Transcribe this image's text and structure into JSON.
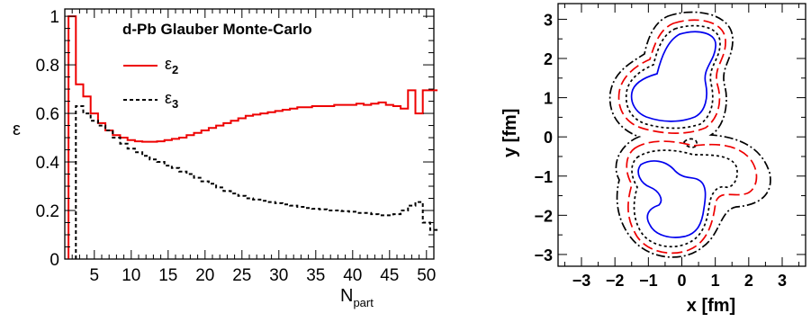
{
  "chart_data": [
    {
      "type": "line",
      "title": "d-Pb  Glauber Monte-Carlo",
      "xlabel": "N",
      "xlabel_sub": "part",
      "ylabel": "ε",
      "xlim": [
        1,
        51
      ],
      "ylim": [
        0,
        1.03
      ],
      "xticks": [
        5,
        10,
        15,
        20,
        25,
        30,
        35,
        40,
        45,
        50
      ],
      "yticks": [
        0,
        0.2,
        0.4,
        0.6,
        0.8,
        1
      ],
      "ytick_labels": [
        "0",
        "0.2",
        "0.4",
        "0.6",
        "0.8",
        "1"
      ],
      "legend_placement": "top-center",
      "grid": false,
      "series": [
        {
          "name": "ε",
          "name_sub": "2",
          "color": "#ee0000",
          "style": "solid",
          "x": [
            2,
            3,
            4,
            5,
            6,
            7,
            8,
            9,
            10,
            11,
            12,
            13,
            14,
            15,
            16,
            17,
            18,
            19,
            20,
            21,
            22,
            23,
            24,
            25,
            26,
            27,
            28,
            29,
            30,
            31,
            32,
            33,
            34,
            35,
            36,
            37,
            38,
            39,
            40,
            41,
            42,
            43,
            44,
            45,
            46,
            47,
            48,
            49,
            50,
            51
          ],
          "y": [
            1.0,
            0.72,
            0.67,
            0.6,
            0.56,
            0.53,
            0.51,
            0.5,
            0.49,
            0.485,
            0.483,
            0.483,
            0.485,
            0.49,
            0.495,
            0.5,
            0.51,
            0.52,
            0.53,
            0.54,
            0.55,
            0.56,
            0.57,
            0.58,
            0.59,
            0.595,
            0.6,
            0.605,
            0.61,
            0.615,
            0.62,
            0.625,
            0.625,
            0.63,
            0.63,
            0.63,
            0.635,
            0.635,
            0.635,
            0.64,
            0.635,
            0.64,
            0.645,
            0.635,
            0.63,
            0.62,
            0.695,
            0.6,
            0.695,
            0.695
          ]
        },
        {
          "name": "ε",
          "name_sub": "3",
          "color": "#000000",
          "style": "dashed",
          "x": [
            3,
            4,
            5,
            6,
            7,
            8,
            9,
            10,
            11,
            12,
            13,
            14,
            15,
            16,
            17,
            18,
            19,
            20,
            21,
            22,
            23,
            24,
            25,
            26,
            27,
            28,
            29,
            30,
            31,
            32,
            33,
            34,
            35,
            36,
            37,
            38,
            39,
            40,
            41,
            42,
            43,
            44,
            45,
            46,
            47,
            48,
            49,
            50,
            51
          ],
          "y": [
            0.63,
            0.6,
            0.57,
            0.55,
            0.53,
            0.5,
            0.475,
            0.455,
            0.44,
            0.425,
            0.41,
            0.4,
            0.385,
            0.375,
            0.36,
            0.35,
            0.335,
            0.32,
            0.31,
            0.295,
            0.28,
            0.27,
            0.26,
            0.25,
            0.245,
            0.24,
            0.235,
            0.23,
            0.225,
            0.22,
            0.215,
            0.21,
            0.207,
            0.205,
            0.2,
            0.2,
            0.197,
            0.195,
            0.19,
            0.19,
            0.185,
            0.18,
            0.18,
            0.185,
            0.2,
            0.22,
            0.235,
            0.15,
            0.12
          ]
        }
      ]
    },
    {
      "type": "contour",
      "xlabel": "x  [fm]",
      "ylabel": "y  [fm]",
      "xlim": [
        -3.7,
        3.7
      ],
      "ylim": [
        -3.3,
        3.4
      ],
      "xticks": [
        -3,
        -2,
        -1,
        0,
        1,
        2,
        3
      ],
      "xtick_labels": [
        "−3",
        "−2",
        "−1",
        "0",
        "1",
        "2",
        "3"
      ],
      "yticks": [
        -3,
        -2,
        -1,
        0,
        1,
        2,
        3
      ],
      "ytick_labels": [
        "−3",
        "−2",
        "−1",
        "0",
        "1",
        "2",
        "3"
      ],
      "grid": false,
      "contours": [
        {
          "level": 4,
          "color": "#0000ee",
          "style": "solid"
        },
        {
          "level": 3,
          "color": "#000000",
          "style": "dotted"
        },
        {
          "level": 2,
          "color": "#ee0000",
          "style": "dashed"
        },
        {
          "level": 1,
          "color": "#000000",
          "style": "dash-dot"
        }
      ]
    }
  ]
}
